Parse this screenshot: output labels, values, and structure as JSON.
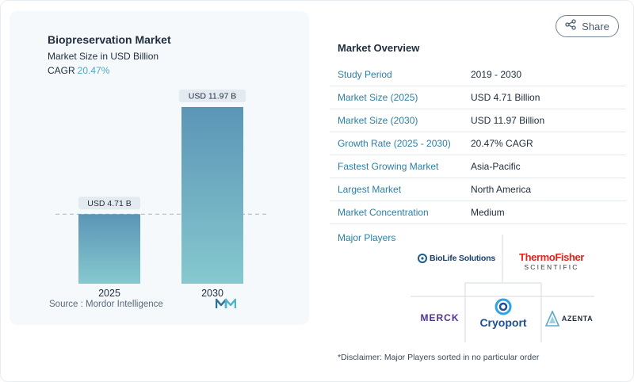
{
  "chart": {
    "title": "Biopreservation Market",
    "subtitle": "Market Size in USD Billion",
    "cagr_label": "CAGR",
    "cagr_value": "20.47%",
    "source": "Source :  Mordor Intelligence"
  },
  "chart_data": {
    "type": "bar",
    "categories": [
      "2025",
      "2030"
    ],
    "values": [
      4.71,
      11.97
    ],
    "data_labels": [
      "USD 4.71 B",
      "USD 11.97 B"
    ],
    "title": "Biopreservation Market",
    "ylabel": "Market Size in USD Billion",
    "xlabel": "",
    "ylim": [
      0,
      11.97
    ],
    "grid": false,
    "reference_line": "dashed at 2025 value",
    "colors": {
      "bar_top": "#5b95b6",
      "bar_bottom": "#86c9cf"
    }
  },
  "share": {
    "label": "Share"
  },
  "overview": {
    "title": "Market Overview",
    "rows": [
      {
        "key": "Study Period",
        "value": "2019 - 2030"
      },
      {
        "key": "Market Size (2025)",
        "value": "USD 4.71 Billion"
      },
      {
        "key": "Market Size (2030)",
        "value": "USD 11.97 Billion"
      },
      {
        "key": "Growth Rate (2025 - 2030)",
        "value": "20.47% CAGR"
      },
      {
        "key": "Fastest Growing Market",
        "value": "Asia-Pacific"
      },
      {
        "key": "Largest Market",
        "value": "North America"
      },
      {
        "key": "Market Concentration",
        "value": "Medium"
      }
    ]
  },
  "players": {
    "title": "Major Players",
    "logos": {
      "biolife": "BioLife Solutions",
      "thermo_top": "ThermoFisher",
      "thermo_bottom": "SCIENTIFIC",
      "merck": "MERCK",
      "cryoport": "Cryoport",
      "azenta": "AZENTA"
    },
    "disclaimer": "*Disclaimer: Major Players sorted in no particular order"
  },
  "icons": {
    "share": "share-icon",
    "brand": "mordor-logo-icon"
  },
  "colors": {
    "accent": "#2b7fa6",
    "cagr": "#4fa8c8",
    "thermo_red": "#e2231a",
    "cryoport_blue": "#1d4f91",
    "merck_purple": "#503291"
  }
}
